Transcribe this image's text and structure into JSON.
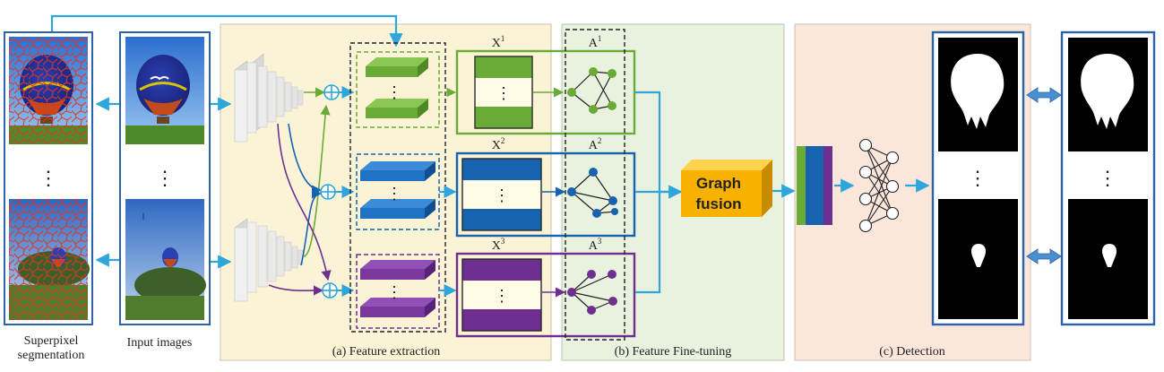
{
  "labels": {
    "superpixel_line1": "Superpixel",
    "superpixel_line2": "segmentation",
    "input_images": "Input images",
    "panel_a": "(a) Feature extraction",
    "panel_b": "(b) Feature Fine-tuning",
    "panel_c": "(c) Detection",
    "graph_fusion_line1": "Graph",
    "graph_fusion_line2": "fusion",
    "x1": "X",
    "x2": "X",
    "x3": "X",
    "a1": "A",
    "a2": "A",
    "a3": "A",
    "sup1": "1",
    "sup2": "2",
    "sup3": "3",
    "ellipsis": "⋮"
  },
  "colors": {
    "panel_a_bg": "#fbf3d6",
    "panel_b_bg": "#e9f2df",
    "panel_c_bg": "#fbe6dc",
    "arrow": "#2ea6dc",
    "green": "#6aaa37",
    "blue": "#1763b0",
    "purple": "#6e2f91",
    "orange": "#f7b200",
    "frame_blue": "#2a63a8",
    "superpixel_red": "#e8321e"
  }
}
